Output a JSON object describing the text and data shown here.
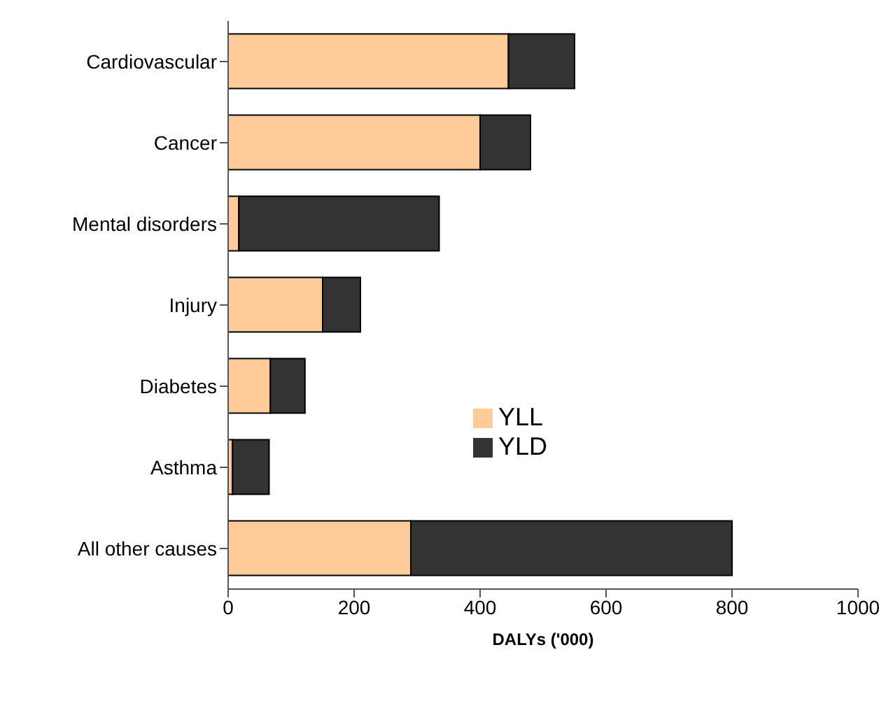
{
  "chart_data": {
    "type": "bar",
    "orientation": "horizontal",
    "stacked": true,
    "xlabel": "DALYs ('000)",
    "categories": [
      "Cardiovascular",
      "Cancer",
      "Mental disorders",
      "Injury",
      "Diabetes",
      "Asthma",
      "All other causes"
    ],
    "series": [
      {
        "name": "YLL",
        "color": "#ffcc99",
        "values": [
          445,
          400,
          17,
          150,
          67,
          7,
          290
        ]
      },
      {
        "name": "YLD",
        "color": "#333333",
        "values": [
          105,
          80,
          318,
          60,
          55,
          58,
          510
        ]
      }
    ],
    "xlim": [
      0,
      1000
    ],
    "xticks": [
      0,
      200,
      400,
      600,
      800,
      1000
    ],
    "grid": false,
    "legend": "bottom left"
  }
}
